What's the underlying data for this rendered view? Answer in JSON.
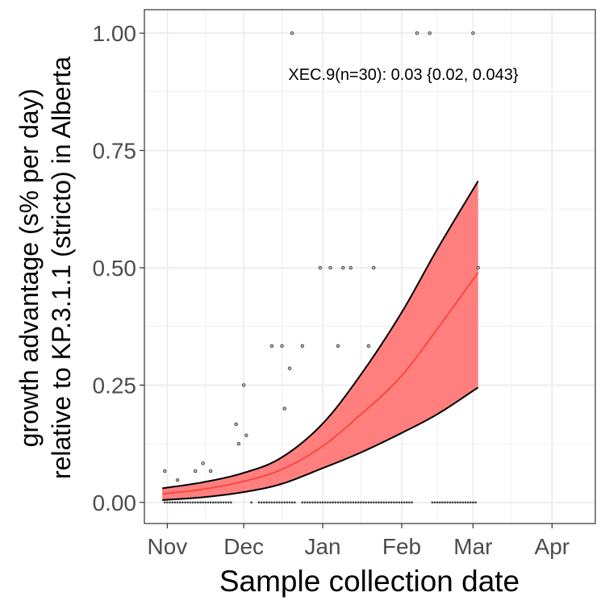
{
  "chart_data": {
    "type": "line",
    "xlabel": "Sample collection date",
    "ylabel_line1": "growth advantage (s% per day)",
    "ylabel_line2": "relative to KP.3.1.1 (stricto) in Alberta",
    "annotation": "XEC.9(n=30): 0.03 {0.02, 0.043}",
    "xlim": [
      "2024-10-23",
      "2025-04-18"
    ],
    "ylim": [
      -0.045,
      1.05
    ],
    "x_ticks": [
      {
        "date": "2024-11-01",
        "label": "Nov"
      },
      {
        "date": "2024-12-01",
        "label": "Dec"
      },
      {
        "date": "2025-01-01",
        "label": "Jan"
      },
      {
        "date": "2025-02-01",
        "label": "Feb"
      },
      {
        "date": "2025-03-01",
        "label": "Mar"
      },
      {
        "date": "2025-04-01",
        "label": "Apr"
      }
    ],
    "x_minor_ticks": [
      "2024-11-16",
      "2024-12-16",
      "2025-01-16",
      "2025-02-15",
      "2025-03-16"
    ],
    "y_ticks": [
      {
        "value": 0.0,
        "label": "0.00"
      },
      {
        "value": 0.25,
        "label": "0.25"
      },
      {
        "value": 0.5,
        "label": "0.50"
      },
      {
        "value": 0.75,
        "label": "0.75"
      },
      {
        "value": 1.0,
        "label": "1.00"
      }
    ],
    "y_minor_ticks": [
      0.125,
      0.375,
      0.625,
      0.875
    ],
    "grid": true,
    "colors": {
      "ribbon": "#ff7f7f",
      "fit_line": "#f8433c",
      "ribbon_edge": "#000000",
      "points": "#3f3f3f",
      "grid": "#ebebeb",
      "panel_border": "#333333"
    },
    "fit_start": "2024-10-30",
    "fit_end": "2025-03-03",
    "fit_curve": [
      {
        "x": "2024-10-30",
        "y": 0.018,
        "lower": 0.005,
        "upper": 0.03
      },
      {
        "x": "2024-11-15",
        "y": 0.028,
        "lower": 0.011,
        "upper": 0.043
      },
      {
        "x": "2024-12-01",
        "y": 0.045,
        "lower": 0.022,
        "upper": 0.063
      },
      {
        "x": "2024-12-15",
        "y": 0.068,
        "lower": 0.038,
        "upper": 0.093
      },
      {
        "x": "2025-01-01",
        "y": 0.12,
        "lower": 0.073,
        "upper": 0.168
      },
      {
        "x": "2025-01-15",
        "y": 0.183,
        "lower": 0.104,
        "upper": 0.265
      },
      {
        "x": "2025-02-01",
        "y": 0.27,
        "lower": 0.148,
        "upper": 0.405
      },
      {
        "x": "2025-02-15",
        "y": 0.37,
        "lower": 0.188,
        "upper": 0.54
      },
      {
        "x": "2025-03-03",
        "y": 0.49,
        "lower": 0.245,
        "upper": 0.685
      }
    ],
    "points": [
      {
        "x": "2024-10-31",
        "y": 0.0667
      },
      {
        "x": "2024-11-05",
        "y": 0.0476
      },
      {
        "x": "2024-11-12",
        "y": 0.0667
      },
      {
        "x": "2024-11-15",
        "y": 0.0833
      },
      {
        "x": "2024-11-18",
        "y": 0.0667
      },
      {
        "x": "2024-11-28",
        "y": 0.1667
      },
      {
        "x": "2024-11-29",
        "y": 0.125
      },
      {
        "x": "2024-12-01",
        "y": 0.25
      },
      {
        "x": "2024-12-02",
        "y": 0.1429
      },
      {
        "x": "2024-12-12",
        "y": 0.3333
      },
      {
        "x": "2024-12-16",
        "y": 0.3333
      },
      {
        "x": "2024-12-17",
        "y": 0.2
      },
      {
        "x": "2024-12-19",
        "y": 0.2857
      },
      {
        "x": "2024-12-20",
        "y": 1.0
      },
      {
        "x": "2024-12-24",
        "y": 0.3333
      },
      {
        "x": "2024-12-31",
        "y": 0.5
      },
      {
        "x": "2025-01-04",
        "y": 0.5
      },
      {
        "x": "2025-01-07",
        "y": 0.3333
      },
      {
        "x": "2025-01-09",
        "y": 0.5
      },
      {
        "x": "2025-01-12",
        "y": 0.5
      },
      {
        "x": "2025-01-19",
        "y": 0.3333
      },
      {
        "x": "2025-01-21",
        "y": 0.5
      },
      {
        "x": "2025-02-07",
        "y": 1.0
      },
      {
        "x": "2025-02-12",
        "y": 1.0
      },
      {
        "x": "2025-03-01",
        "y": 1.0
      },
      {
        "x": "2025-03-03",
        "y": 0.5
      }
    ],
    "zero_point_ranges": [
      [
        "2024-10-31",
        "2024-11-26"
      ],
      [
        "2024-12-04",
        "2024-12-04"
      ],
      [
        "2024-12-07",
        "2024-12-21"
      ],
      [
        "2024-12-24",
        "2025-02-05"
      ],
      [
        "2025-02-13",
        "2025-03-02"
      ]
    ]
  }
}
